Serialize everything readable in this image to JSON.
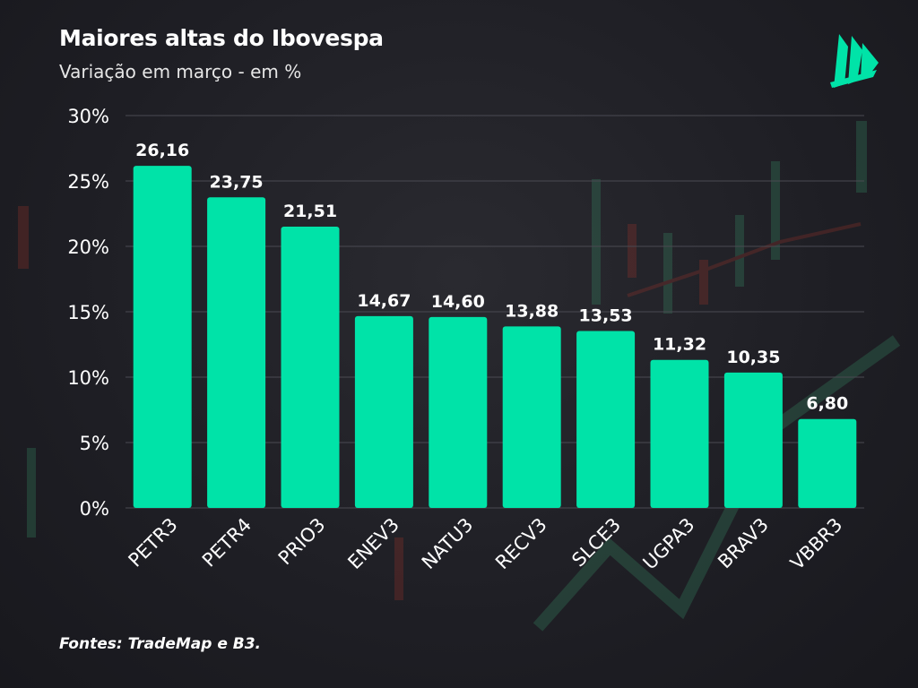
{
  "header": {
    "title": "Maiores altas do Ibovespa",
    "subtitle": "Variação em março - em %"
  },
  "footer": {
    "source": "Fontes: TradeMap e B3."
  },
  "logo": {
    "icon": "sail-logo-icon",
    "color": "#00e3a8"
  },
  "colors": {
    "bar": "#00e3a8",
    "text": "#ffffff",
    "grid": "#4a4a52",
    "background": "#1e1e24"
  },
  "chart_data": {
    "type": "bar",
    "categories": [
      "PETR3",
      "PETR4",
      "PRIO3",
      "ENEV3",
      "NATU3",
      "RECV3",
      "SLCE3",
      "UGPA3",
      "BRAV3",
      "VBBR3"
    ],
    "values": [
      26.16,
      23.75,
      21.51,
      14.67,
      14.6,
      13.88,
      13.53,
      11.32,
      10.35,
      6.8
    ],
    "value_labels": [
      "26,16",
      "23,75",
      "21,51",
      "14,67",
      "14,60",
      "13,88",
      "13,53",
      "11,32",
      "10,35",
      "6,80"
    ],
    "title": "Maiores altas do Ibovespa",
    "subtitle": "Variação em março - em %",
    "xlabel": "",
    "ylabel": "",
    "ylim": [
      0,
      30
    ],
    "yticks": [
      0,
      5,
      10,
      15,
      20,
      25,
      30
    ],
    "ytick_labels": [
      "0%",
      "5%",
      "10%",
      "15%",
      "20%",
      "25%",
      "30%"
    ],
    "grid": true,
    "legend": "none"
  }
}
